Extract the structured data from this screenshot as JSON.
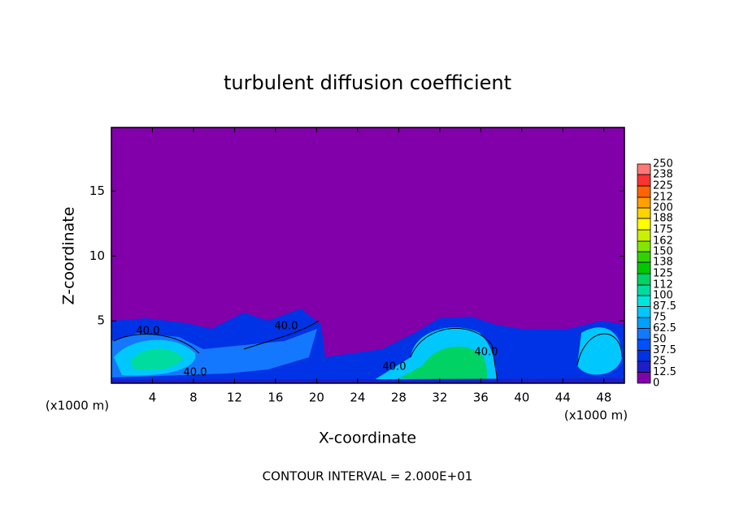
{
  "chart_data": {
    "type": "contour",
    "title": "turbulent diffusion coefficient",
    "x_label": "X-coordinate",
    "y_label": "Z-coordinate",
    "x_unit_labels": [
      "(x1000 m)",
      "(x1000 m)"
    ],
    "footer": "CONTOUR INTERVAL = 2.000E+01",
    "contour_labels": [
      "40.0",
      "40.0",
      "40.0",
      "40.0",
      "40.0"
    ],
    "xlim": [
      0,
      50
    ],
    "xticks": [
      4,
      8,
      12,
      16,
      20,
      24,
      28,
      32,
      36,
      40,
      44,
      48
    ],
    "ylim": [
      0.2,
      19.9
    ],
    "yticks": [
      5,
      10,
      15
    ],
    "levels": [
      0,
      12.5,
      25,
      37.5,
      50,
      62.5,
      75,
      87.5,
      100,
      112,
      125,
      138,
      150,
      162,
      175,
      188,
      200,
      212,
      225,
      238,
      250
    ],
    "colors": [
      "#8200aa",
      "#1e1ec8",
      "#0032e6",
      "#0050ff",
      "#1478ff",
      "#00a0ff",
      "#00c8ff",
      "#00e6dc",
      "#00dca0",
      "#00d264",
      "#00c800",
      "#32d200",
      "#82e600",
      "#c8f000",
      "#ffff00",
      "#ffd200",
      "#ffa000",
      "#ff6400",
      "#ff3232",
      "#ff7878"
    ]
  }
}
